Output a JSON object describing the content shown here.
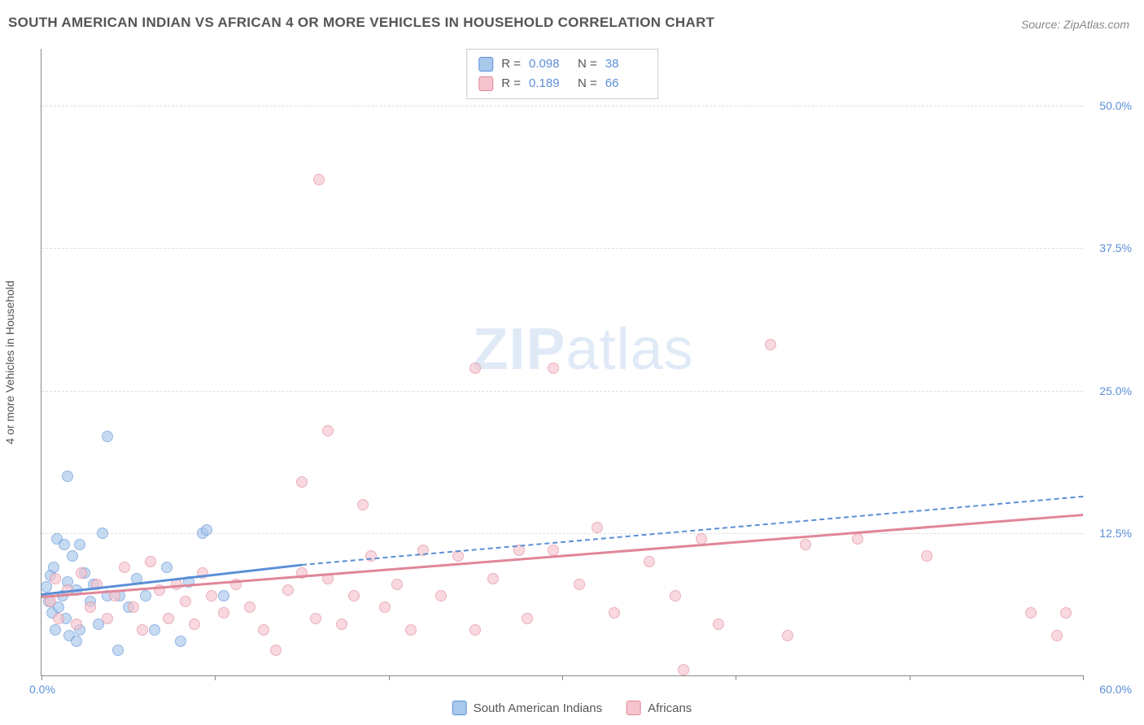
{
  "title": "SOUTH AMERICAN INDIAN VS AFRICAN 4 OR MORE VEHICLES IN HOUSEHOLD CORRELATION CHART",
  "source": "Source: ZipAtlas.com",
  "y_axis_label": "4 or more Vehicles in Household",
  "watermark_bold": "ZIP",
  "watermark_light": "atlas",
  "chart": {
    "type": "scatter",
    "xlim": [
      0,
      60
    ],
    "ylim": [
      0,
      55
    ],
    "x_ticks": [
      0,
      10,
      20,
      30,
      40,
      50,
      60
    ],
    "x_tick_labels": {
      "0": "0.0%",
      "60": "60.0%"
    },
    "y_ticks": [
      12.5,
      25.0,
      37.5,
      50.0
    ],
    "y_tick_labels": [
      "12.5%",
      "25.0%",
      "37.5%",
      "50.0%"
    ],
    "grid_color": "#dddddd",
    "background_color": "#ffffff",
    "axis_color": "#888888",
    "point_radius": 7,
    "series": [
      {
        "name": "South American Indians",
        "color_fill": "#a8c8ec",
        "color_stroke": "#5b8fd6",
        "R": "0.098",
        "N": "38",
        "trend": {
          "x1": 0,
          "y1": 7.2,
          "x2": 15,
          "y2": 9.8,
          "dashed_to_x": 60,
          "dashed_to_y": 15.8,
          "line_width": 3
        },
        "points": [
          [
            0.3,
            7.8
          ],
          [
            0.4,
            6.5
          ],
          [
            0.5,
            8.8
          ],
          [
            0.6,
            5.5
          ],
          [
            0.7,
            9.5
          ],
          [
            0.8,
            4.0
          ],
          [
            0.9,
            12.0
          ],
          [
            1.0,
            6.0
          ],
          [
            1.2,
            7.0
          ],
          [
            1.3,
            11.5
          ],
          [
            1.4,
            5.0
          ],
          [
            1.5,
            8.2
          ],
          [
            1.6,
            3.5
          ],
          [
            1.8,
            10.5
          ],
          [
            2.0,
            7.5
          ],
          [
            2.2,
            4.0
          ],
          [
            1.5,
            17.5
          ],
          [
            2.2,
            11.5
          ],
          [
            2.5,
            9.0
          ],
          [
            2.8,
            6.5
          ],
          [
            3.0,
            8.0
          ],
          [
            3.3,
            4.5
          ],
          [
            3.5,
            12.5
          ],
          [
            3.8,
            7.0
          ],
          [
            3.8,
            21.0
          ],
          [
            4.4,
            2.2
          ],
          [
            5.0,
            6.0
          ],
          [
            5.5,
            8.5
          ],
          [
            6.0,
            7.0
          ],
          [
            6.5,
            4.0
          ],
          [
            7.2,
            9.5
          ],
          [
            8.0,
            3.0
          ],
          [
            8.5,
            8.2
          ],
          [
            9.3,
            12.5
          ],
          [
            9.5,
            12.8
          ],
          [
            10.5,
            7.0
          ],
          [
            4.5,
            7.0
          ],
          [
            2.0,
            3.0
          ]
        ]
      },
      {
        "name": "Africans",
        "color_fill": "#f6c4ce",
        "color_stroke": "#e08698",
        "R": "0.189",
        "N": "66",
        "trend": {
          "x1": 0,
          "y1": 7.0,
          "x2": 60,
          "y2": 14.2,
          "line_width": 3
        },
        "points": [
          [
            0.5,
            6.5
          ],
          [
            0.8,
            8.5
          ],
          [
            1.0,
            5.0
          ],
          [
            1.5,
            7.5
          ],
          [
            2.0,
            4.5
          ],
          [
            2.3,
            9.0
          ],
          [
            2.8,
            6.0
          ],
          [
            3.2,
            8.0
          ],
          [
            3.8,
            5.0
          ],
          [
            4.2,
            7.0
          ],
          [
            4.8,
            9.5
          ],
          [
            5.3,
            6.0
          ],
          [
            5.8,
            4.0
          ],
          [
            6.3,
            10.0
          ],
          [
            6.8,
            7.5
          ],
          [
            7.3,
            5.0
          ],
          [
            7.8,
            8.0
          ],
          [
            8.3,
            6.5
          ],
          [
            8.8,
            4.5
          ],
          [
            9.3,
            9.0
          ],
          [
            9.8,
            7.0
          ],
          [
            10.5,
            5.5
          ],
          [
            11.2,
            8.0
          ],
          [
            12.0,
            6.0
          ],
          [
            12.8,
            4.0
          ],
          [
            13.5,
            2.2
          ],
          [
            14.2,
            7.5
          ],
          [
            15.0,
            9.0
          ],
          [
            15.8,
            5.0
          ],
          [
            16.5,
            8.5
          ],
          [
            17.3,
            4.5
          ],
          [
            18.0,
            7.0
          ],
          [
            15.0,
            17.0
          ],
          [
            16.5,
            21.5
          ],
          [
            16.0,
            43.5
          ],
          [
            18.5,
            15.0
          ],
          [
            19.8,
            6.0
          ],
          [
            20.5,
            8.0
          ],
          [
            21.3,
            4.0
          ],
          [
            22.0,
            11.0
          ],
          [
            19.0,
            10.5
          ],
          [
            23.0,
            7.0
          ],
          [
            24.0,
            10.5
          ],
          [
            25.0,
            4.0
          ],
          [
            26.0,
            8.5
          ],
          [
            25.0,
            27.0
          ],
          [
            27.5,
            11.0
          ],
          [
            28.0,
            5.0
          ],
          [
            29.5,
            11.0
          ],
          [
            31.0,
            8.0
          ],
          [
            29.5,
            27.0
          ],
          [
            32.0,
            13.0
          ],
          [
            33.0,
            5.5
          ],
          [
            35.0,
            10.0
          ],
          [
            36.5,
            7.0
          ],
          [
            38.0,
            12.0
          ],
          [
            37.0,
            0.5
          ],
          [
            39.0,
            4.5
          ],
          [
            42.0,
            29.0
          ],
          [
            43.0,
            3.5
          ],
          [
            44.0,
            11.5
          ],
          [
            47.0,
            12.0
          ],
          [
            51.0,
            10.5
          ],
          [
            57.0,
            5.5
          ],
          [
            58.5,
            3.5
          ],
          [
            59.0,
            5.5
          ]
        ]
      }
    ]
  },
  "stats_box": {
    "rows": [
      {
        "swatch": "blue",
        "r_label": "R =",
        "r_value": "0.098",
        "n_label": "N =",
        "n_value": "38"
      },
      {
        "swatch": "pink",
        "r_label": "R =",
        "r_value": "0.189",
        "n_label": "N =",
        "n_value": "66"
      }
    ]
  },
  "bottom_legend": [
    {
      "swatch": "blue",
      "label": "South American Indians"
    },
    {
      "swatch": "pink",
      "label": "Africans"
    }
  ]
}
